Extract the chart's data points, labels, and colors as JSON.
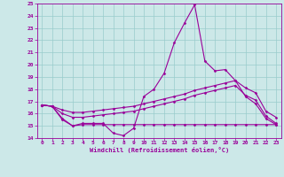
{
  "xlabel": "Windchill (Refroidissement éolien,°C)",
  "xlim": [
    -0.5,
    23.5
  ],
  "ylim": [
    14,
    25
  ],
  "yticks": [
    14,
    15,
    16,
    17,
    18,
    19,
    20,
    21,
    22,
    23,
    24,
    25
  ],
  "xticks": [
    0,
    1,
    2,
    3,
    4,
    5,
    6,
    7,
    8,
    9,
    10,
    11,
    12,
    13,
    14,
    15,
    16,
    17,
    18,
    19,
    20,
    21,
    22,
    23
  ],
  "bg_color": "#cce8e8",
  "grid_color": "#99cccc",
  "line_color": "#990099",
  "line1": [
    16.7,
    16.6,
    15.6,
    15.0,
    15.2,
    15.2,
    15.2,
    14.4,
    14.2,
    14.8,
    17.4,
    18.0,
    19.3,
    21.8,
    23.4,
    24.9,
    20.3,
    19.5,
    19.6,
    18.7,
    17.4,
    16.8,
    15.6,
    15.1
  ],
  "line2": [
    16.7,
    16.6,
    15.5,
    15.0,
    15.1,
    15.1,
    15.1,
    15.1,
    15.1,
    15.1,
    15.1,
    15.1,
    15.1,
    15.1,
    15.1,
    15.1,
    15.1,
    15.1,
    15.1,
    15.1,
    15.1,
    15.1,
    15.1,
    15.1
  ],
  "line3": [
    16.7,
    16.6,
    16.0,
    15.7,
    15.7,
    15.8,
    15.9,
    16.0,
    16.1,
    16.2,
    16.4,
    16.6,
    16.8,
    17.0,
    17.2,
    17.5,
    17.7,
    17.9,
    18.1,
    18.3,
    17.5,
    17.1,
    15.8,
    15.2
  ],
  "line4": [
    16.7,
    16.6,
    16.3,
    16.1,
    16.1,
    16.2,
    16.3,
    16.4,
    16.5,
    16.6,
    16.8,
    17.0,
    17.2,
    17.4,
    17.6,
    17.9,
    18.1,
    18.3,
    18.5,
    18.7,
    18.1,
    17.7,
    16.2,
    15.7
  ]
}
